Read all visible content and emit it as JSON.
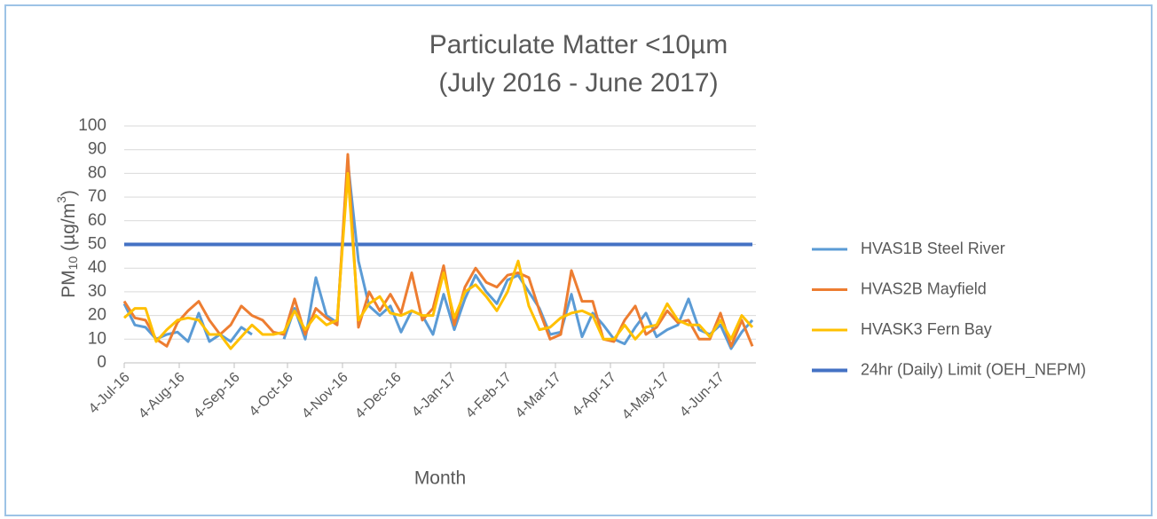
{
  "chart_data": {
    "type": "line",
    "title": [
      "Particulate Matter <10µm",
      "(July 2016 - June 2017)"
    ],
    "y_label": [
      "PM",
      "10",
      " (µg/m",
      "3",
      ")"
    ],
    "x_label": "Month",
    "x": [
      "2016-07-04",
      "2016-07-10",
      "2016-07-16",
      "2016-07-22",
      "2016-07-28",
      "2016-08-03",
      "2016-08-09",
      "2016-08-15",
      "2016-08-21",
      "2016-08-27",
      "2016-09-02",
      "2016-09-08",
      "2016-09-14",
      "2016-09-20",
      "2016-09-26",
      "2016-10-02",
      "2016-10-08",
      "2016-10-14",
      "2016-10-20",
      "2016-10-26",
      "2016-11-01",
      "2016-11-07",
      "2016-11-13",
      "2016-11-19",
      "2016-11-25",
      "2016-12-01",
      "2016-12-07",
      "2016-12-13",
      "2016-12-19",
      "2016-12-25",
      "2016-12-31",
      "2017-01-06",
      "2017-01-12",
      "2017-01-18",
      "2017-01-24",
      "2017-01-30",
      "2017-02-05",
      "2017-02-11",
      "2017-02-17",
      "2017-02-23",
      "2017-03-01",
      "2017-03-07",
      "2017-03-13",
      "2017-03-19",
      "2017-03-25",
      "2017-03-31",
      "2017-04-06",
      "2017-04-12",
      "2017-04-18",
      "2017-04-24",
      "2017-04-30",
      "2017-05-06",
      "2017-05-12",
      "2017-05-18",
      "2017-05-24",
      "2017-05-30",
      "2017-06-05",
      "2017-06-11",
      "2017-06-17",
      "2017-06-23"
    ],
    "xlim": [
      "2016-07-04",
      "2017-06-25"
    ],
    "xticks": [
      {
        "value": "2016-07-04",
        "label": "4-Jul-16"
      },
      {
        "value": "2016-08-04",
        "label": "4-Aug-16"
      },
      {
        "value": "2016-09-04",
        "label": "4-Sep-16"
      },
      {
        "value": "2016-10-04",
        "label": "4-Oct-16"
      },
      {
        "value": "2016-11-04",
        "label": "4-Nov-16"
      },
      {
        "value": "2016-12-04",
        "label": "4-Dec-16"
      },
      {
        "value": "2017-01-04",
        "label": "4-Jan-17"
      },
      {
        "value": "2017-02-04",
        "label": "4-Feb-17"
      },
      {
        "value": "2017-03-04",
        "label": "4-Mar-17"
      },
      {
        "value": "2017-04-04",
        "label": "4-Apr-17"
      },
      {
        "value": "2017-05-04",
        "label": "4-May-17"
      },
      {
        "value": "2017-06-04",
        "label": "4-Jun-17"
      }
    ],
    "ylim": [
      0,
      100
    ],
    "yticks": [
      0,
      10,
      20,
      30,
      40,
      50,
      60,
      70,
      80,
      90,
      100
    ],
    "grid": true,
    "legend": "right",
    "series": [
      {
        "name": "HVAS1B Steel River",
        "color": "#5b9bd5",
        "width": 3,
        "values": [
          25,
          16,
          15,
          10,
          12,
          13,
          9,
          21,
          9,
          12,
          9,
          15,
          12,
          null,
          null,
          10,
          23,
          10,
          36,
          20,
          17,
          85,
          43,
          24,
          20,
          24,
          13,
          22,
          20,
          12,
          29,
          14,
          27,
          37,
          30,
          25,
          35,
          37,
          30,
          23,
          12,
          13,
          29,
          11,
          21,
          16,
          10,
          8,
          15,
          21,
          11,
          14,
          16,
          27,
          14,
          12,
          16,
          6,
          13,
          18
        ]
      },
      {
        "name": "HVAS2B Mayfield",
        "color": "#ed7d31",
        "width": 3,
        "values": [
          26,
          19,
          18,
          10,
          7,
          17,
          22,
          26,
          18,
          12,
          16,
          24,
          20,
          18,
          13,
          12,
          27,
          12,
          23,
          19,
          16,
          88,
          15,
          30,
          22,
          29,
          21,
          38,
          18,
          23,
          41,
          16,
          32,
          40,
          34,
          32,
          37,
          38,
          36,
          22,
          10,
          12,
          39,
          26,
          26,
          10,
          9,
          18,
          24,
          12,
          15,
          22,
          17,
          18,
          10,
          10,
          21,
          7,
          18,
          7
        ]
      },
      {
        "name": "HVASK3 Fern Bay",
        "color": "#ffc000",
        "width": 3,
        "values": [
          19,
          23,
          23,
          9,
          14,
          18,
          19,
          18,
          12,
          12,
          6,
          11,
          16,
          12,
          12,
          13,
          22,
          14,
          20,
          16,
          18,
          80,
          18,
          25,
          28,
          21,
          20,
          22,
          20,
          20,
          38,
          19,
          30,
          33,
          28,
          22,
          30,
          43,
          24,
          14,
          15,
          19,
          21,
          22,
          20,
          10,
          10,
          16,
          10,
          15,
          16,
          25,
          18,
          16,
          16,
          11,
          18,
          10,
          20,
          15
        ]
      },
      {
        "name": "24hr (Daily) Limit (OEH_NEPM)",
        "color": "#4472c4",
        "width": 4,
        "values": [
          50,
          50,
          50,
          50,
          50,
          50,
          50,
          50,
          50,
          50,
          50,
          50,
          50,
          50,
          50,
          50,
          50,
          50,
          50,
          50,
          50,
          50,
          50,
          50,
          50,
          50,
          50,
          50,
          50,
          50,
          50,
          50,
          50,
          50,
          50,
          50,
          50,
          50,
          50,
          50,
          50,
          50,
          50,
          50,
          50,
          50,
          50,
          50,
          50,
          50,
          50,
          50,
          50,
          50,
          50,
          50,
          50,
          50,
          50,
          50
        ]
      }
    ]
  }
}
